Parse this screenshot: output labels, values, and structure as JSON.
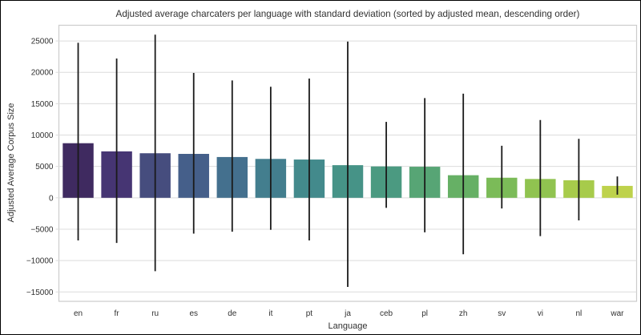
{
  "chart_data": {
    "type": "bar",
    "title": "Adjusted average charcaters per language with standard deviation (sorted by adjusted mean, descending order)",
    "xlabel": "Language",
    "ylabel": "Adjusted Average Corpus Size",
    "categories": [
      "en",
      "fr",
      "ru",
      "es",
      "de",
      "it",
      "pt",
      "ja",
      "ceb",
      "pl",
      "zh",
      "sv",
      "vi",
      "nl",
      "war"
    ],
    "values": [
      8700,
      7400,
      7100,
      7000,
      6500,
      6200,
      6100,
      5200,
      5000,
      4950,
      3600,
      3200,
      3000,
      2800,
      1900
    ],
    "error_low": [
      -6800,
      -7200,
      -11700,
      -5700,
      -5400,
      -5100,
      -6800,
      -14200,
      -1600,
      -5500,
      -9000,
      -1700,
      -6100,
      -3600,
      500
    ],
    "error_high": [
      24700,
      22200,
      26000,
      19900,
      18700,
      17700,
      19000,
      24900,
      12100,
      15900,
      16600,
      8300,
      12400,
      9400,
      3400
    ],
    "bar_colors": [
      "#3f2a60",
      "#463573",
      "#464d7e",
      "#455f8a",
      "#44708e",
      "#437e8e",
      "#438a8c",
      "#469387",
      "#4b9a81",
      "#57a575",
      "#66b065",
      "#7bbb58",
      "#90c350",
      "#a7cb4b",
      "#bed24c"
    ],
    "ylim": [
      -16500,
      27500
    ],
    "yticks": [
      25000,
      20000,
      15000,
      10000,
      5000,
      0,
      -5000,
      -10000,
      -15000
    ],
    "ytick_labels": [
      "25000",
      "20000",
      "15000",
      "10000",
      "5000",
      "0",
      "−5000",
      "−10000",
      "−15000"
    ],
    "grid": true,
    "legend": "none",
    "style": {
      "background": "#ffffff",
      "grid_color": "#dcdcdc",
      "spine_color": "#cccccc",
      "errorbar_color": "#1a1a1a",
      "text_color": "#303030"
    }
  }
}
